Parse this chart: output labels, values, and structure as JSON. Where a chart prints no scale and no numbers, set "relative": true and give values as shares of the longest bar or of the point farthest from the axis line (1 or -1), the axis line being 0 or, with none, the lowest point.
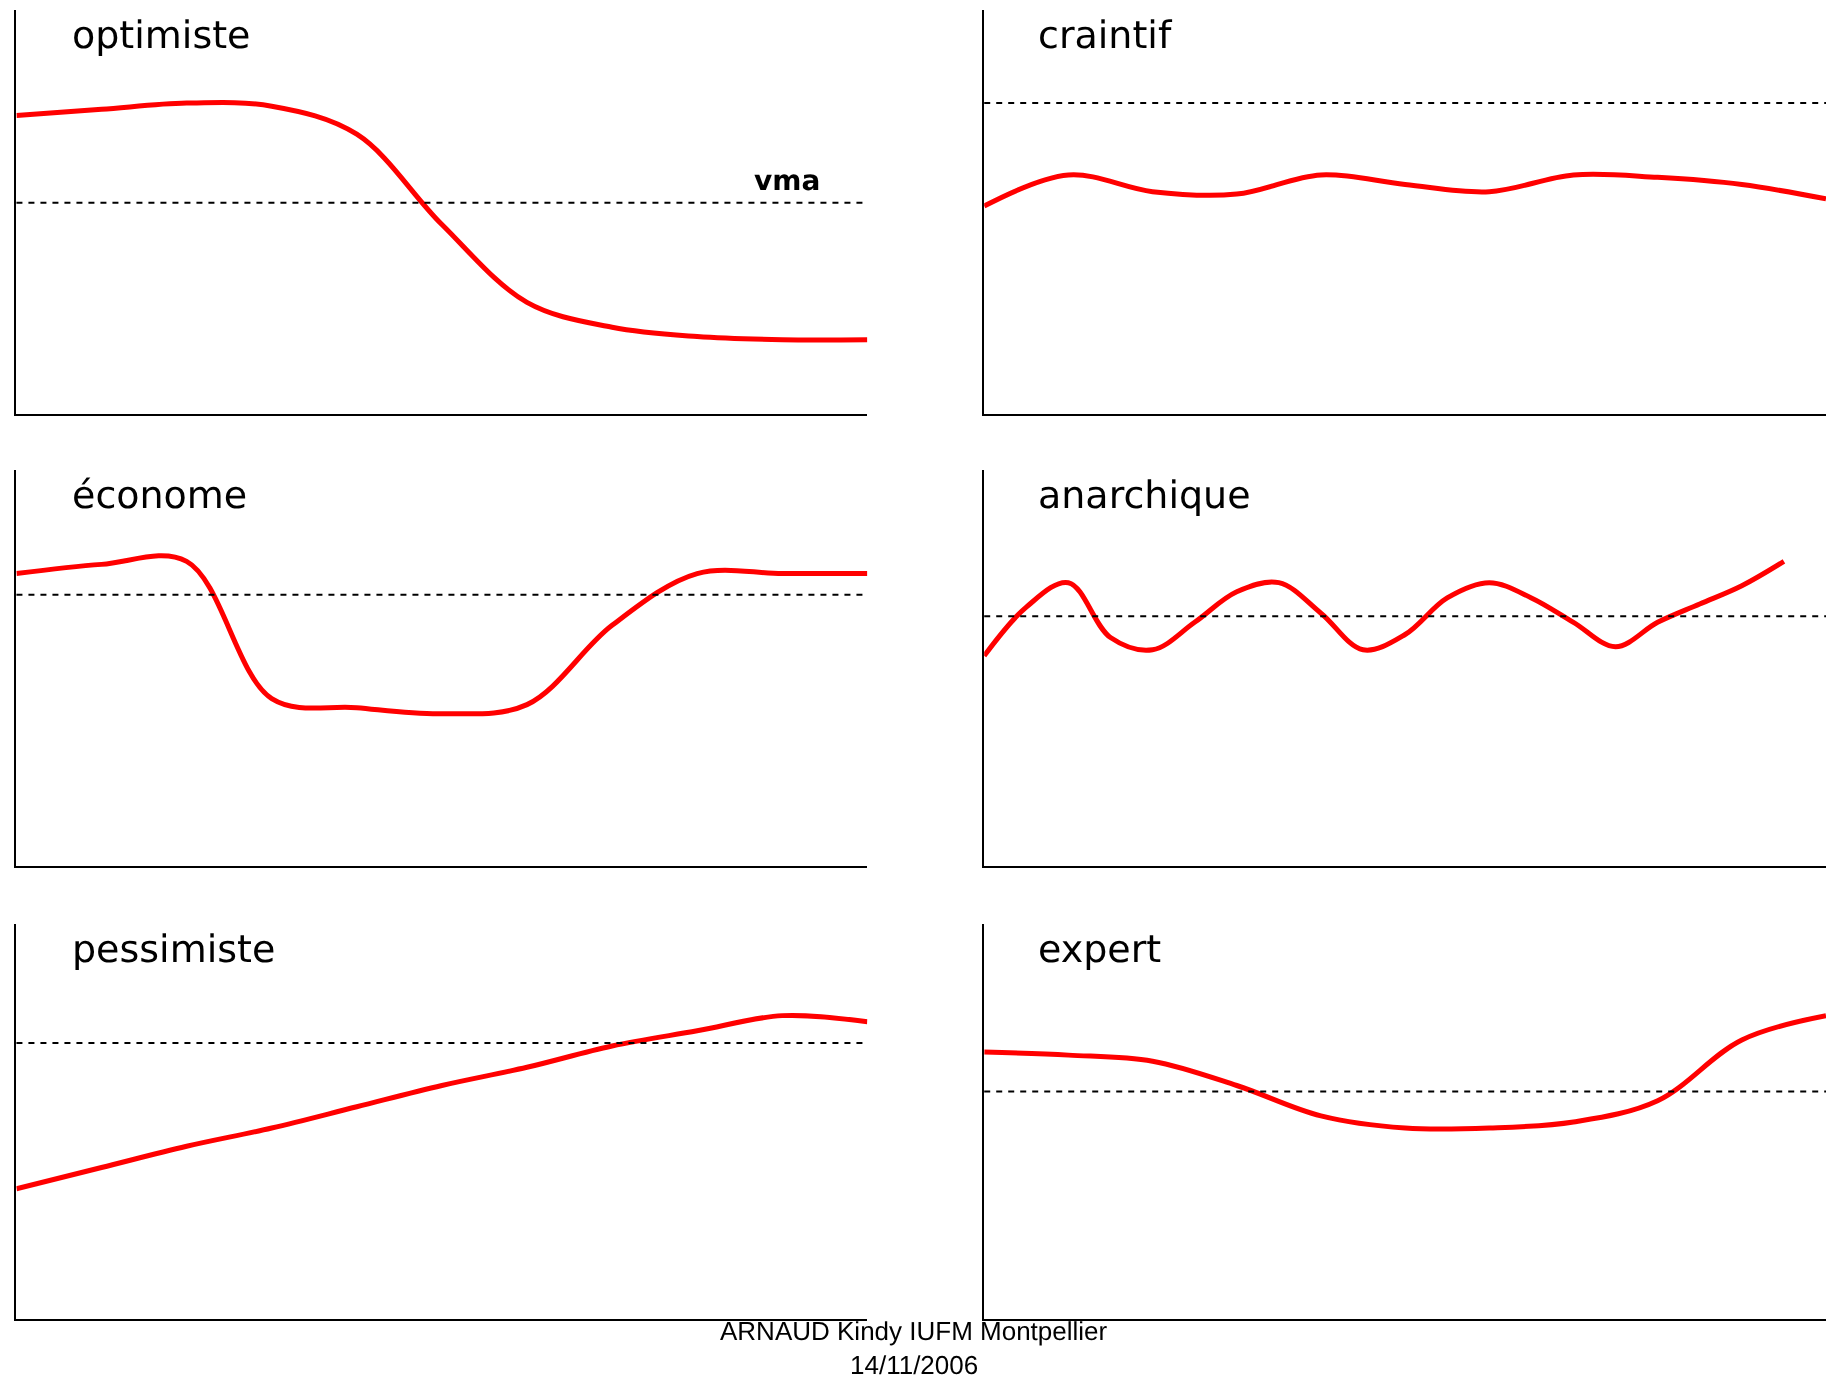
{
  "chart_data": [
    {
      "type": "line",
      "title": "optimiste",
      "relative": true,
      "categories": [
        null,
        null,
        null,
        null,
        null,
        null,
        null,
        null,
        null,
        null,
        null
      ],
      "series": [
        {
          "color": "#ff0000",
          "values": [
            0.96,
            0.98,
            1.0,
            0.99,
            0.9,
            0.61,
            0.36,
            0.28,
            0.25,
            0.24,
            0.24
          ]
        }
      ],
      "ref_lines": [
        {
          "axis": "y",
          "value": 0.68,
          "label": "vma",
          "color": "#000000",
          "line_style": "dotted"
        }
      ]
    },
    {
      "type": "line",
      "title": "craintif",
      "relative": true,
      "categories": [
        null,
        null,
        null,
        null,
        null,
        null,
        null,
        null,
        null,
        null,
        null
      ],
      "series": [
        {
          "color": "#ff0000",
          "values": [
            0.87,
            1.0,
            0.93,
            0.92,
            1.0,
            0.96,
            0.93,
            1.0,
            0.99,
            0.96,
            0.9
          ]
        }
      ],
      "ref_lines": [
        {
          "axis": "y",
          "value": 1.3,
          "color": "#000000",
          "line_style": "dotted"
        }
      ]
    },
    {
      "type": "line",
      "title": "économe",
      "relative": true,
      "categories": [
        null,
        null,
        null,
        null,
        null,
        null,
        null,
        null,
        null,
        null,
        null
      ],
      "series": [
        {
          "color": "#ff0000",
          "values": [
            0.96,
            0.99,
            1.0,
            0.55,
            0.52,
            0.5,
            0.53,
            0.79,
            0.96,
            0.96,
            0.96
          ]
        }
      ],
      "ref_lines": [
        {
          "axis": "y",
          "value": 0.89,
          "color": "#000000",
          "line_style": "dotted"
        }
      ]
    },
    {
      "type": "line",
      "title": "anarchique",
      "relative": true,
      "categories": [
        null,
        null,
        null,
        null,
        null,
        null,
        null,
        null,
        null,
        null,
        null,
        null,
        null,
        null,
        null,
        null,
        null,
        null,
        null,
        null,
        null
      ],
      "series": [
        {
          "color": "#ff0000",
          "values": [
            0.69,
            0.85,
            0.93,
            0.75,
            0.71,
            0.8,
            0.9,
            0.93,
            0.83,
            0.71,
            0.76,
            0.88,
            0.93,
            0.88,
            0.8,
            0.72,
            0.8,
            0.86,
            0.92,
            1.0,
            null
          ]
        }
      ],
      "ref_lines": [
        {
          "axis": "y",
          "value": 0.82,
          "color": "#000000",
          "line_style": "dotted"
        }
      ]
    },
    {
      "type": "line",
      "title": "pessimiste",
      "relative": true,
      "categories": [
        null,
        null,
        null,
        null,
        null,
        null,
        null,
        null,
        null,
        null,
        null
      ],
      "series": [
        {
          "color": "#ff0000",
          "values": [
            0.43,
            0.5,
            0.57,
            0.63,
            0.7,
            0.77,
            0.83,
            0.9,
            0.95,
            1.0,
            0.98
          ]
        }
      ],
      "ref_lines": [
        {
          "axis": "y",
          "value": 0.91,
          "color": "#000000",
          "line_style": "dotted"
        }
      ]
    },
    {
      "type": "line",
      "title": "expert",
      "relative": true,
      "categories": [
        null,
        null,
        null,
        null,
        null,
        null,
        null,
        null,
        null,
        null,
        null
      ],
      "series": [
        {
          "color": "#ff0000",
          "values": [
            0.88,
            0.87,
            0.85,
            0.77,
            0.67,
            0.63,
            0.63,
            0.65,
            0.72,
            0.92,
            1.0
          ]
        }
      ],
      "ref_lines": [
        {
          "axis": "y",
          "value": 0.75,
          "color": "#000000",
          "line_style": "dotted"
        }
      ],
      "annotations": [
        "ARNAUD Kindy IUFM Montpellier",
        "14/11/2006"
      ]
    }
  ]
}
